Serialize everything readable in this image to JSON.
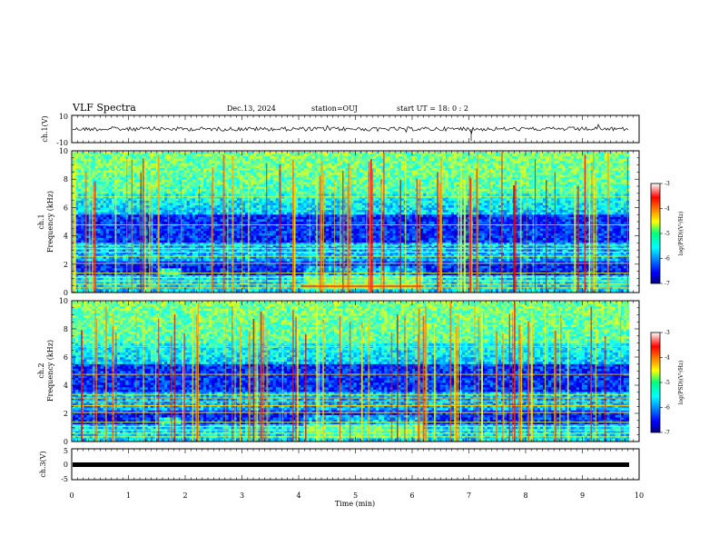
{
  "header": {
    "title": "VLF Spectra",
    "date": "Dec.13, 2024",
    "station": "station=OUJ",
    "start": "start  UT =  18: 0  : 2"
  },
  "chart_data": [
    {
      "type": "line",
      "panel": "ch1-waveform",
      "ylabel": "ch.1(V)",
      "ylim": [
        -10,
        10
      ],
      "yticks": [
        "10",
        "-10"
      ],
      "xlim": [
        0,
        10
      ],
      "line_color": "#000000"
    },
    {
      "type": "heatmap",
      "panel": "ch1-spectrogram",
      "ylabel_top": "ch.1",
      "ylabel": "Frequency (kHz)",
      "ylim": [
        0,
        10
      ],
      "yticks": [
        "0",
        "2",
        "4",
        "6",
        "8",
        "10"
      ],
      "xlim": [
        0,
        10
      ],
      "colorbar": {
        "label": "log(PSD)(V²/Hz)",
        "range": [
          -7,
          -3
        ],
        "ticks": [
          "-3",
          "-4",
          "-5",
          "-6",
          "-7"
        ]
      }
    },
    {
      "type": "heatmap",
      "panel": "ch2-spectrogram",
      "ylabel_top": "ch.2",
      "ylabel": "Frequency (kHz)",
      "ylim": [
        0,
        10
      ],
      "yticks": [
        "0",
        "2",
        "4",
        "6",
        "8",
        "10"
      ],
      "xlim": [
        0,
        10
      ],
      "colorbar": {
        "label": "log(PSD)(V²/Hz)",
        "range": [
          -7,
          -3
        ],
        "ticks": [
          "-3",
          "-4",
          "-5",
          "-6",
          "-7"
        ]
      }
    },
    {
      "type": "line",
      "panel": "ch3-waveform",
      "ylabel": "ch.3(V)",
      "ylim": [
        -5,
        5
      ],
      "yticks": [
        "5",
        "0",
        "-5"
      ],
      "xlim": [
        0,
        10
      ],
      "xlabel": "Time (min)",
      "xticks": [
        "0",
        "1",
        "2",
        "3",
        "4",
        "5",
        "6",
        "7",
        "8",
        "9",
        "10"
      ],
      "line_color": "#000000"
    }
  ],
  "colors": {
    "jet_low": "#00007f",
    "jet_mid": "#00ff80",
    "jet_high": "#ff0000"
  }
}
